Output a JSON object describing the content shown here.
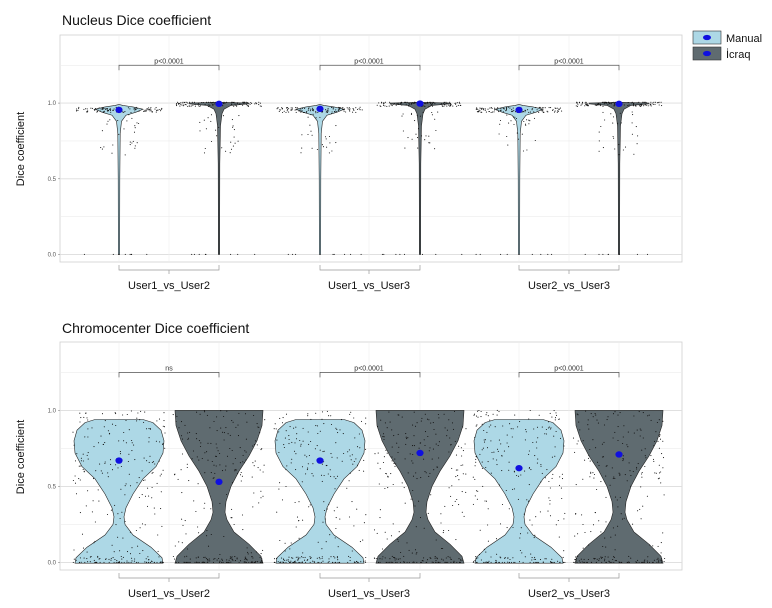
{
  "legend": {
    "items": [
      {
        "label": "Manual",
        "color": "#add8e6"
      },
      {
        "label": "İcraq",
        "color": "#5f6b70"
      }
    ],
    "position": "top-right"
  },
  "chart_data": [
    {
      "type": "violin",
      "title": "Nucleus Dice coefficient",
      "ylabel": "Dice coefficient",
      "ylim": [
        -0.05,
        1.45
      ],
      "yticks": [
        "0.0",
        "0.5",
        "1.0"
      ],
      "grid": true,
      "categories": [
        "User1_vs_User2",
        "User1_vs_User3",
        "User2_vs_User3"
      ],
      "series": [
        {
          "name": "Manual",
          "color": "#add8e6",
          "means": [
            0.955,
            0.962,
            0.955
          ]
        },
        {
          "name": "İcraq",
          "color": "#5f6b70",
          "means": [
            0.995,
            0.997,
            0.995
          ]
        }
      ],
      "significance": [
        "p<0.0001",
        "p<0.0001",
        "p<0.0001"
      ]
    },
    {
      "type": "violin",
      "title": "Chromocenter Dice coefficient",
      "ylabel": "Dice coefficient",
      "ylim": [
        -0.05,
        1.45
      ],
      "yticks": [
        "0.0",
        "0.5",
        "1.0"
      ],
      "grid": true,
      "categories": [
        "User1_vs_User2",
        "User1_vs_User3",
        "User2_vs_User3"
      ],
      "series": [
        {
          "name": "Manual",
          "color": "#add8e6",
          "means": [
            0.67,
            0.67,
            0.62
          ]
        },
        {
          "name": "İcraq",
          "color": "#5f6b70",
          "means": [
            0.53,
            0.72,
            0.71
          ]
        }
      ],
      "significance": [
        "ns",
        "p<0.0001",
        "p<0.0001"
      ]
    }
  ]
}
